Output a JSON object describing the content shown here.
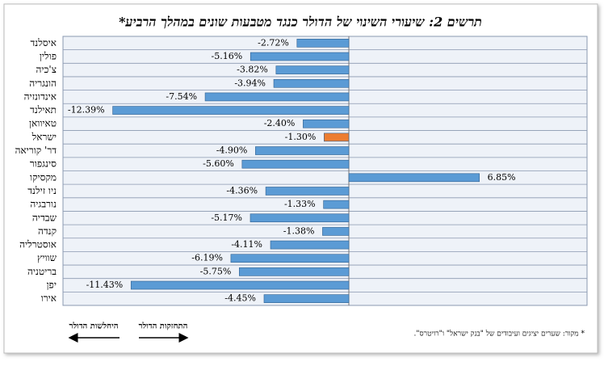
{
  "chart_data": {
    "type": "barh",
    "title": "תרשים 2: שיעורי השינוי של הדולר כנגד מטבעות שונים במהלך הרביע*",
    "categories": [
      "איסלנד",
      "פולין",
      "צ'כיה",
      "הונגריה",
      "אינדונזיה",
      "תאילנד",
      "טאיוואן",
      "ישראל",
      "דר' קוריאה",
      "סינגפור",
      "מקסיקו",
      "ניו זילנד",
      "נורבגיה",
      "שבדיה",
      "קנדה",
      "אוסטרליה",
      "שוויץ",
      "בריטניה",
      "יפן",
      "אירו"
    ],
    "values": [
      -2.72,
      -5.16,
      -3.82,
      -3.94,
      -7.54,
      -12.39,
      -2.4,
      -1.3,
      -4.9,
      -5.6,
      6.85,
      -4.36,
      -1.33,
      -5.17,
      -1.38,
      -4.11,
      -6.19,
      -5.75,
      -11.43,
      -4.45
    ],
    "value_labels": [
      "-2.72%",
      "-5.16%",
      "-3.82%",
      "-3.94%",
      "-7.54%",
      "-12.39%",
      "-2.40%",
      "-1.30%",
      "-4.90%",
      "-5.60%",
      "6.85%",
      "-4.36%",
      "-1.33%",
      "-5.17%",
      "-1.38%",
      "-4.11%",
      "-6.19%",
      "-5.75%",
      "-11.43%",
      "-4.45%"
    ],
    "colors": [
      "#5b9bd5",
      "#5b9bd5",
      "#5b9bd5",
      "#5b9bd5",
      "#5b9bd5",
      "#5b9bd5",
      "#5b9bd5",
      "#ed7d31",
      "#5b9bd5",
      "#5b9bd5",
      "#5b9bd5",
      "#5b9bd5",
      "#5b9bd5",
      "#5b9bd5",
      "#5b9bd5",
      "#5b9bd5",
      "#5b9bd5",
      "#5b9bd5",
      "#5b9bd5",
      "#5b9bd5"
    ],
    "xlim": [
      -15,
      12.5
    ],
    "grid": true,
    "annotations": [
      "היחלשות הדולר",
      "התחזקות הדולר"
    ],
    "source": "* מקור: שערים יציגים ועיבודים של \"בנק ישראל\" ו\"רויטרס\"."
  }
}
